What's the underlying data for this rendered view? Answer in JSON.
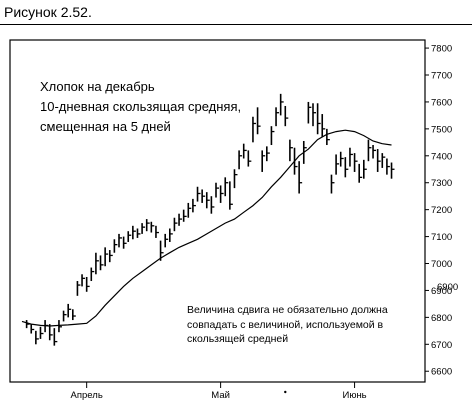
{
  "figure_caption": "Рисунок 2.52.",
  "chart_data": {
    "type": "bar",
    "subtype": "ohlc-bars-with-moving-average",
    "title_lines": [
      "Хлопок на декабрь",
      "10-дневная скользящая средняя,",
      "смещенная на 5 дней"
    ],
    "annotation_lines": [
      "Величина сдвига не обязательно должна",
      "совпадать с величиной, используемой в",
      "скользящей средней"
    ],
    "stray_label": "6900",
    "y_ticks": [
      "7800",
      "7700",
      "7600",
      "7500",
      "7400",
      "7300",
      "7200",
      "7100",
      "7000",
      "6900",
      "6800",
      "6700",
      "6600"
    ],
    "ylim": [
      6560,
      7830
    ],
    "x_tick_labels": [
      "Апрель",
      "Май",
      "Июнь"
    ],
    "x_tick_positions": [
      14,
      43,
      72
    ],
    "x_range": [
      0,
      84
    ],
    "grid": false,
    "colors": {
      "ink": "#000000",
      "background": "#ffffff"
    },
    "series": [
      {
        "kind": "price-bars",
        "bars": [
          {
            "x": 1,
            "h": 6790,
            "l": 6760,
            "c": 6775
          },
          {
            "x": 2,
            "h": 6775,
            "l": 6740,
            "c": 6755
          },
          {
            "x": 3,
            "h": 6750,
            "l": 6700,
            "c": 6720
          },
          {
            "x": 4,
            "h": 6765,
            "l": 6720,
            "c": 6740
          },
          {
            "x": 5,
            "h": 6790,
            "l": 6745,
            "c": 6770
          },
          {
            "x": 6,
            "h": 6775,
            "l": 6715,
            "c": 6735
          },
          {
            "x": 7,
            "h": 6760,
            "l": 6695,
            "c": 6710
          },
          {
            "x": 8,
            "h": 6790,
            "l": 6745,
            "c": 6765
          },
          {
            "x": 9,
            "h": 6825,
            "l": 6785,
            "c": 6810
          },
          {
            "x": 10,
            "h": 6850,
            "l": 6800,
            "c": 6830
          },
          {
            "x": 11,
            "h": 6830,
            "l": 6790,
            "c": 6805
          },
          {
            "x": 12,
            "h": 6935,
            "l": 6880,
            "c": 6920
          },
          {
            "x": 13,
            "h": 6960,
            "l": 6915,
            "c": 6945
          },
          {
            "x": 14,
            "h": 6950,
            "l": 6895,
            "c": 6915
          },
          {
            "x": 15,
            "h": 6985,
            "l": 6935,
            "c": 6970
          },
          {
            "x": 16,
            "h": 7040,
            "l": 6960,
            "c": 7010
          },
          {
            "x": 17,
            "h": 7030,
            "l": 6975,
            "c": 6995
          },
          {
            "x": 18,
            "h": 7060,
            "l": 6990,
            "c": 7035
          },
          {
            "x": 19,
            "h": 7050,
            "l": 7005,
            "c": 7030
          },
          {
            "x": 20,
            "h": 7090,
            "l": 7040,
            "c": 7070
          },
          {
            "x": 21,
            "h": 7110,
            "l": 7060,
            "c": 7095
          },
          {
            "x": 22,
            "h": 7100,
            "l": 7055,
            "c": 7075
          },
          {
            "x": 23,
            "h": 7120,
            "l": 7080,
            "c": 7105
          },
          {
            "x": 24,
            "h": 7140,
            "l": 7090,
            "c": 7120
          },
          {
            "x": 25,
            "h": 7130,
            "l": 7095,
            "c": 7110
          },
          {
            "x": 26,
            "h": 7150,
            "l": 7110,
            "c": 7135
          },
          {
            "x": 27,
            "h": 7165,
            "l": 7120,
            "c": 7150
          },
          {
            "x": 28,
            "h": 7155,
            "l": 7115,
            "c": 7140
          },
          {
            "x": 29,
            "h": 7140,
            "l": 7095,
            "c": 7115
          },
          {
            "x": 30,
            "h": 7085,
            "l": 7010,
            "c": 7040
          },
          {
            "x": 31,
            "h": 7110,
            "l": 7060,
            "c": 7090
          },
          {
            "x": 32,
            "h": 7130,
            "l": 7080,
            "c": 7110
          },
          {
            "x": 33,
            "h": 7170,
            "l": 7120,
            "c": 7150
          },
          {
            "x": 34,
            "h": 7185,
            "l": 7140,
            "c": 7165
          },
          {
            "x": 35,
            "h": 7200,
            "l": 7155,
            "c": 7175
          },
          {
            "x": 36,
            "h": 7225,
            "l": 7170,
            "c": 7205
          },
          {
            "x": 37,
            "h": 7240,
            "l": 7190,
            "c": 7215
          },
          {
            "x": 38,
            "h": 7285,
            "l": 7230,
            "c": 7260
          },
          {
            "x": 39,
            "h": 7275,
            "l": 7225,
            "c": 7250
          },
          {
            "x": 40,
            "h": 7265,
            "l": 7205,
            "c": 7235
          },
          {
            "x": 41,
            "h": 7250,
            "l": 7185,
            "c": 7210
          },
          {
            "x": 42,
            "h": 7300,
            "l": 7245,
            "c": 7280
          },
          {
            "x": 43,
            "h": 7290,
            "l": 7225,
            "c": 7260
          },
          {
            "x": 44,
            "h": 7320,
            "l": 7250,
            "c": 7300
          },
          {
            "x": 45,
            "h": 7305,
            "l": 7200,
            "c": 7220
          },
          {
            "x": 46,
            "h": 7350,
            "l": 7280,
            "c": 7330
          },
          {
            "x": 47,
            "h": 7420,
            "l": 7350,
            "c": 7400
          },
          {
            "x": 48,
            "h": 7445,
            "l": 7390,
            "c": 7420
          },
          {
            "x": 49,
            "h": 7420,
            "l": 7360,
            "c": 7380
          },
          {
            "x": 50,
            "h": 7545,
            "l": 7450,
            "c": 7520
          },
          {
            "x": 51,
            "h": 7580,
            "l": 7480,
            "c": 7510
          },
          {
            "x": 52,
            "h": 7420,
            "l": 7340,
            "c": 7400
          },
          {
            "x": 53,
            "h": 7435,
            "l": 7380,
            "c": 7410
          },
          {
            "x": 54,
            "h": 7510,
            "l": 7440,
            "c": 7490
          },
          {
            "x": 55,
            "h": 7580,
            "l": 7510,
            "c": 7560
          },
          {
            "x": 56,
            "h": 7630,
            "l": 7550,
            "c": 7600
          },
          {
            "x": 57,
            "h": 7585,
            "l": 7510,
            "c": 7540
          },
          {
            "x": 58,
            "h": 7460,
            "l": 7380,
            "c": 7430
          },
          {
            "x": 59,
            "h": 7430,
            "l": 7330,
            "c": 7360
          },
          {
            "x": 60,
            "h": 7380,
            "l": 7260,
            "c": 7300
          },
          {
            "x": 61,
            "h": 7455,
            "l": 7370,
            "c": 7430
          },
          {
            "x": 62,
            "h": 7600,
            "l": 7520,
            "c": 7580
          },
          {
            "x": 63,
            "h": 7595,
            "l": 7510,
            "c": 7560
          },
          {
            "x": 64,
            "h": 7595,
            "l": 7480,
            "c": 7520
          },
          {
            "x": 65,
            "h": 7555,
            "l": 7470,
            "c": 7500
          },
          {
            "x": 66,
            "h": 7500,
            "l": 7440,
            "c": 7460
          },
          {
            "x": 67,
            "h": 7330,
            "l": 7260,
            "c": 7300
          },
          {
            "x": 68,
            "h": 7405,
            "l": 7330,
            "c": 7370
          },
          {
            "x": 69,
            "h": 7415,
            "l": 7360,
            "c": 7390
          },
          {
            "x": 70,
            "h": 7395,
            "l": 7320,
            "c": 7350
          },
          {
            "x": 71,
            "h": 7430,
            "l": 7360,
            "c": 7405
          },
          {
            "x": 72,
            "h": 7410,
            "l": 7340,
            "c": 7380
          },
          {
            "x": 73,
            "h": 7370,
            "l": 7300,
            "c": 7320
          },
          {
            "x": 74,
            "h": 7385,
            "l": 7315,
            "c": 7350
          },
          {
            "x": 75,
            "h": 7460,
            "l": 7380,
            "c": 7430
          },
          {
            "x": 76,
            "h": 7440,
            "l": 7390,
            "c": 7420
          },
          {
            "x": 77,
            "h": 7425,
            "l": 7340,
            "c": 7380
          },
          {
            "x": 78,
            "h": 7410,
            "l": 7355,
            "c": 7395
          },
          {
            "x": 79,
            "h": 7390,
            "l": 7330,
            "c": 7360
          },
          {
            "x": 80,
            "h": 7375,
            "l": 7315,
            "c": 7350
          }
        ]
      },
      {
        "kind": "moving-average-line",
        "points": [
          [
            0,
            6785
          ],
          [
            2,
            6775
          ],
          [
            4,
            6770
          ],
          [
            6,
            6768
          ],
          [
            8,
            6770
          ],
          [
            10,
            6772
          ],
          [
            12,
            6775
          ],
          [
            14,
            6778
          ],
          [
            16,
            6805
          ],
          [
            18,
            6845
          ],
          [
            20,
            6880
          ],
          [
            22,
            6915
          ],
          [
            24,
            6945
          ],
          [
            26,
            6970
          ],
          [
            28,
            6995
          ],
          [
            30,
            7020
          ],
          [
            32,
            7040
          ],
          [
            34,
            7060
          ],
          [
            36,
            7075
          ],
          [
            38,
            7090
          ],
          [
            40,
            7110
          ],
          [
            42,
            7130
          ],
          [
            44,
            7150
          ],
          [
            46,
            7165
          ],
          [
            48,
            7190
          ],
          [
            50,
            7215
          ],
          [
            52,
            7245
          ],
          [
            54,
            7285
          ],
          [
            56,
            7320
          ],
          [
            58,
            7360
          ],
          [
            60,
            7400
          ],
          [
            62,
            7425
          ],
          [
            64,
            7460
          ],
          [
            66,
            7480
          ],
          [
            68,
            7490
          ],
          [
            70,
            7495
          ],
          [
            72,
            7490
          ],
          [
            74,
            7475
          ],
          [
            76,
            7455
          ],
          [
            78,
            7445
          ],
          [
            80,
            7440
          ]
        ]
      }
    ]
  }
}
